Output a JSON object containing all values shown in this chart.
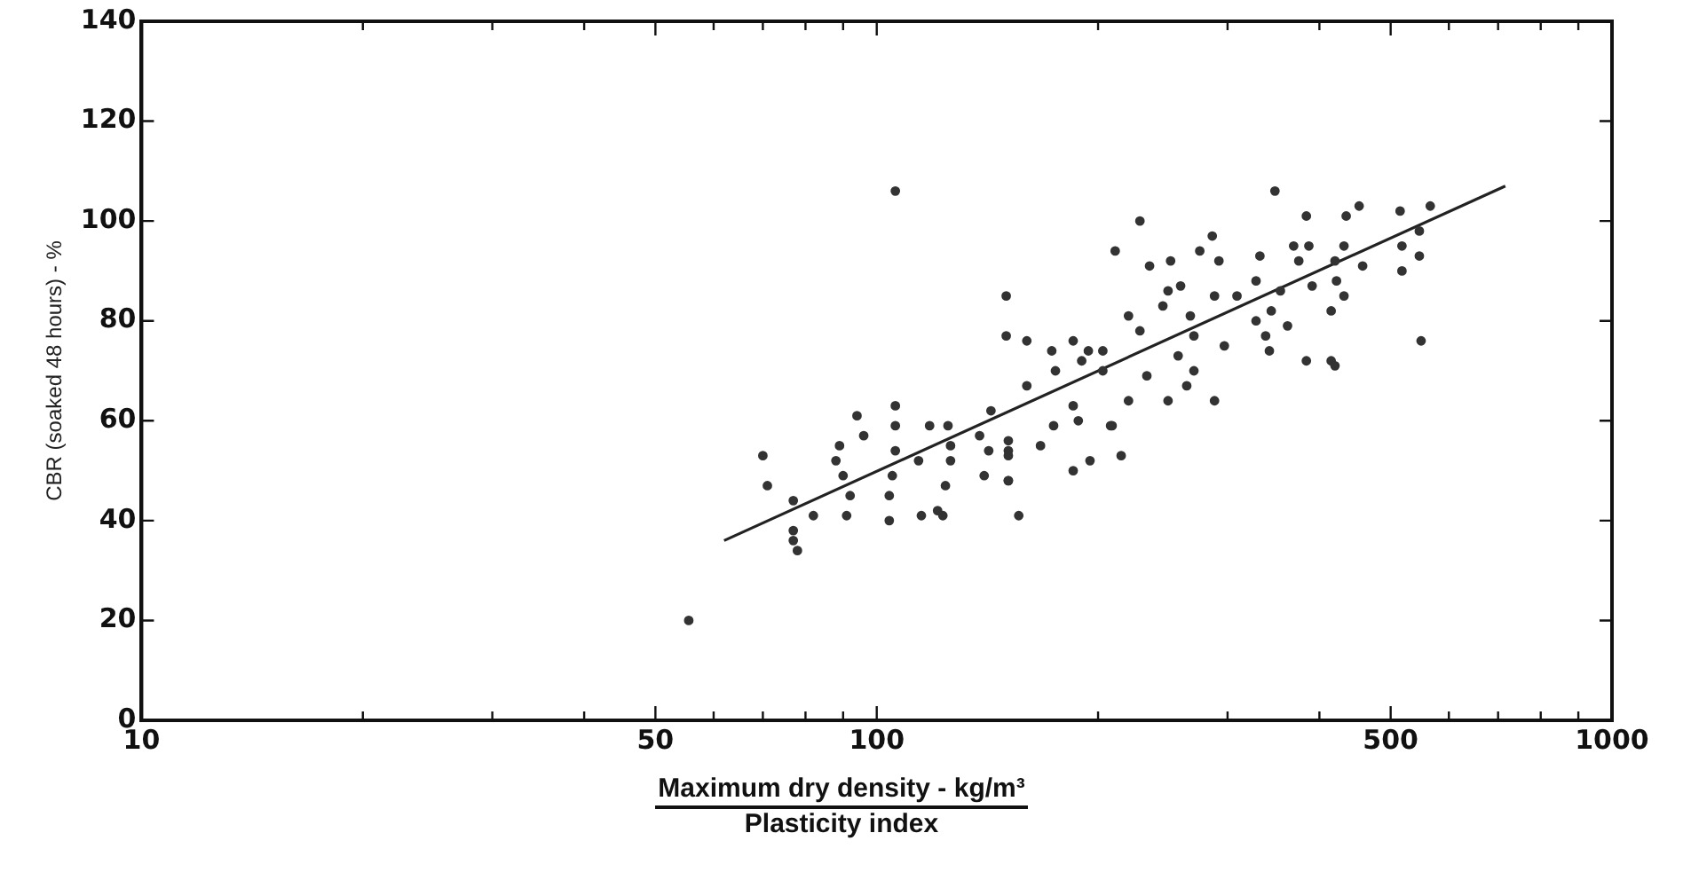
{
  "chart_data": {
    "type": "scatter",
    "xlabel": "Maximum dry density - kg/m³\nPlasticity index",
    "ylabel": "CBR (soaked 48 hours) - %",
    "log": "x",
    "xlim": [
      10,
      1000
    ],
    "ylim": [
      0,
      140
    ],
    "xticks": [
      10,
      {
        "value": 20,
        "label": null
      },
      {
        "value": 30,
        "label": null
      },
      {
        "value": 40,
        "label": null
      },
      50,
      {
        "value": 60,
        "label": null
      },
      {
        "value": 70,
        "label": null
      },
      {
        "value": 80,
        "label": null
      },
      {
        "value": 90,
        "label": null
      },
      100,
      {
        "value": 200,
        "label": null
      },
      {
        "value": 300,
        "label": null
      },
      {
        "value": 400,
        "label": null
      },
      500,
      {
        "value": 600,
        "label": null
      },
      {
        "value": 700,
        "label": null
      },
      {
        "value": 800,
        "label": null
      },
      {
        "value": 900,
        "label": null
      },
      1000
    ],
    "yticks": [
      0,
      20,
      40,
      60,
      80,
      100,
      120,
      140
    ],
    "grid": false,
    "legend": false,
    "marker": "circle",
    "series": [
      {
        "color": "#333333",
        "x": [
          55.5,
          70,
          71,
          77,
          77,
          77,
          78,
          89,
          94,
          96,
          88,
          90,
          92,
          91,
          82,
          106,
          106,
          106,
          105,
          104,
          104,
          114,
          115,
          121,
          123,
          124,
          126,
          126,
          125,
          118,
          138,
          142,
          140,
          143,
          151,
          151,
          106,
          228,
          348,
          384,
          369,
          387,
          432,
          435,
          453,
          286,
          275,
          332,
          375,
          420,
          458,
          235,
          251,
          292,
          211,
          328,
          354,
          391,
          422,
          432,
          415,
          415,
          420,
          384,
          342,
          362,
          328,
          338,
          344,
          309,
          288,
          297,
          270,
          267,
          245,
          249,
          259,
          220,
          228,
          257,
          270,
          264,
          288,
          249,
          233,
          220,
          208,
          215,
          203,
          203,
          190,
          185,
          175,
          173,
          160,
          150,
          150,
          194,
          185,
          188,
          174,
          167,
          160,
          195,
          185,
          151,
          151,
          151,
          156,
          209,
          515,
          566,
          547,
          518,
          547,
          518,
          550
        ],
        "values": [
          20,
          53,
          47,
          44,
          38,
          36,
          34,
          55,
          61,
          57,
          52,
          49,
          45,
          41,
          41,
          63,
          59,
          54,
          49,
          45,
          40,
          52,
          41,
          42,
          41,
          47,
          52,
          55,
          59,
          59,
          57,
          54,
          49,
          62,
          54,
          48,
          106,
          100,
          106,
          101,
          95,
          95,
          95,
          101,
          103,
          97,
          94,
          93,
          92,
          92,
          91,
          91,
          92,
          92,
          94,
          88,
          86,
          87,
          88,
          85,
          82,
          72,
          71,
          72,
          74,
          79,
          80,
          77,
          82,
          85,
          85,
          75,
          77,
          81,
          83,
          86,
          87,
          81,
          78,
          73,
          70,
          67,
          64,
          64,
          69,
          64,
          59,
          53,
          74,
          70,
          72,
          76,
          70,
          74,
          76,
          77,
          85,
          74,
          63,
          60,
          59,
          55,
          67,
          52,
          50,
          56,
          53,
          48,
          41,
          59,
          102,
          103,
          98,
          95,
          93,
          90,
          76
        ]
      },
      {
        "type": "line",
        "color": "#222222",
        "x": [
          62,
          716
        ],
        "values": [
          36,
          107
        ],
        "marker": "none"
      }
    ]
  }
}
